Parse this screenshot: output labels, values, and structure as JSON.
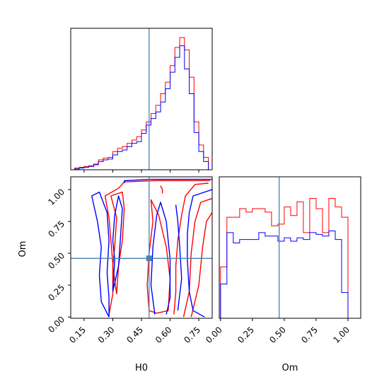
{
  "colors": {
    "series_a": "#ff0000",
    "series_b": "#0000ff",
    "truth": "#4682b4",
    "axes": "#000000",
    "background": "#ffffff"
  },
  "chart_data": [
    {
      "type": "histogram",
      "panel": "H0 marginal (top-left)",
      "xlim": [
        0.08,
        0.82
      ],
      "truth_line_x": 0.49,
      "y_tick_labels": false,
      "bin_edges": [
        0.1,
        0.125,
        0.15,
        0.175,
        0.2,
        0.225,
        0.25,
        0.275,
        0.3,
        0.325,
        0.35,
        0.375,
        0.4,
        0.425,
        0.45,
        0.475,
        0.5,
        0.525,
        0.55,
        0.575,
        0.6,
        0.625,
        0.65,
        0.675,
        0.7,
        0.725,
        0.75,
        0.775,
        0.8
      ],
      "series": [
        {
          "color_key": "series_a",
          "values": [
            2,
            3,
            4,
            5,
            7,
            12,
            14,
            15,
            22,
            26,
            28,
            32,
            36,
            40,
            48,
            58,
            68,
            78,
            92,
            106,
            126,
            148,
            160,
            145,
            112,
            58,
            30,
            15
          ]
        },
        {
          "color_key": "series_b",
          "values": [
            1,
            2,
            3,
            4,
            6,
            10,
            12,
            13,
            18,
            22,
            24,
            28,
            32,
            34,
            44,
            54,
            62,
            70,
            82,
            98,
            118,
            136,
            150,
            122,
            92,
            45,
            22,
            10
          ]
        }
      ]
    },
    {
      "type": "contour",
      "panel": "Om vs H0 joint (bottom-left)",
      "xlabel": "H0",
      "ylabel": "Om",
      "xlim": [
        0.08,
        0.82
      ],
      "ylim": [
        -0.01,
        1.1
      ],
      "x_ticks": [
        "0.15",
        "0.30",
        "0.45",
        "0.60",
        "0.75"
      ],
      "x_tick_values": [
        0.15,
        0.3,
        0.45,
        0.6,
        0.75
      ],
      "y_ticks": [
        "0.00",
        "0.25",
        "0.50",
        "0.75",
        "1.00"
      ],
      "y_tick_values": [
        0.0,
        0.25,
        0.5,
        0.75,
        1.0
      ],
      "truth_point": [
        0.49,
        0.46
      ],
      "series": [
        {
          "color_key": "series_a",
          "contours": [
            [
              [
                0.28,
                0.02
              ],
              [
                0.3,
                0.18
              ],
              [
                0.3,
                0.42
              ],
              [
                0.29,
                0.6
              ],
              [
                0.28,
                0.78
              ],
              [
                0.26,
                0.95
              ],
              [
                0.33,
                1.01
              ],
              [
                0.36,
                1.06
              ],
              [
                0.52,
                1.07
              ],
              [
                0.7,
                1.07
              ],
              [
                0.81,
                1.07
              ]
            ],
            [
              [
                0.8,
                1.05
              ],
              [
                0.73,
                1.04
              ],
              [
                0.68,
                0.95
              ],
              [
                0.66,
                0.8
              ],
              [
                0.64,
                0.6
              ],
              [
                0.63,
                0.4
              ],
              [
                0.63,
                0.2
              ],
              [
                0.62,
                0.02
              ]
            ],
            [
              [
                0.49,
                0.05
              ],
              [
                0.48,
                0.25
              ],
              [
                0.49,
                0.5
              ],
              [
                0.51,
                0.75
              ],
              [
                0.5,
                0.92
              ],
              [
                0.54,
                0.8
              ],
              [
                0.58,
                0.55
              ],
              [
                0.6,
                0.3
              ],
              [
                0.59,
                0.05
              ],
              [
                0.53,
                0.03
              ],
              [
                0.49,
                0.05
              ]
            ],
            [
              [
                0.67,
                0.0
              ],
              [
                0.7,
                0.2
              ],
              [
                0.71,
                0.5
              ],
              [
                0.73,
                0.75
              ],
              [
                0.76,
                0.9
              ],
              [
                0.82,
                0.93
              ]
            ],
            [
              [
                0.71,
                0.0
              ],
              [
                0.75,
                0.25
              ],
              [
                0.77,
                0.55
              ],
              [
                0.79,
                0.75
              ],
              [
                0.82,
                0.82
              ]
            ],
            [
              [
                0.32,
                0.18
              ],
              [
                0.3,
                0.4
              ],
              [
                0.31,
                0.55
              ],
              [
                0.32,
                0.78
              ],
              [
                0.29,
                0.95
              ],
              [
                0.35,
                0.98
              ],
              [
                0.36,
                0.85
              ],
              [
                0.35,
                0.6
              ],
              [
                0.33,
                0.4
              ],
              [
                0.32,
                0.18
              ]
            ],
            [
              [
                0.55,
                1.03
              ],
              [
                0.56,
                1.0
              ],
              [
                0.56,
                0.97
              ]
            ]
          ]
        },
        {
          "color_key": "series_b",
          "contours": [
            [
              [
                0.28,
                0.0
              ],
              [
                0.24,
                0.12
              ],
              [
                0.23,
                0.33
              ],
              [
                0.24,
                0.55
              ],
              [
                0.22,
                0.75
              ],
              [
                0.19,
                0.95
              ],
              [
                0.23,
                0.98
              ],
              [
                0.27,
                0.82
              ],
              [
                0.28,
                0.6
              ],
              [
                0.27,
                0.35
              ],
              [
                0.28,
                0.15
              ],
              [
                0.28,
                0.0
              ]
            ],
            [
              [
                0.36,
                1.05
              ],
              [
                0.36,
                1.07
              ],
              [
                0.5,
                1.08
              ],
              [
                0.65,
                1.08
              ],
              [
                0.82,
                1.08
              ]
            ],
            [
              [
                0.78,
                0.0
              ],
              [
                0.72,
                0.05
              ],
              [
                0.7,
                0.2
              ],
              [
                0.69,
                0.45
              ],
              [
                0.69,
                0.65
              ],
              [
                0.7,
                0.82
              ],
              [
                0.72,
                0.95
              ],
              [
                0.82,
                1.0
              ]
            ],
            [
              [
                0.52,
                0.02
              ],
              [
                0.5,
                0.25
              ],
              [
                0.51,
                0.55
              ],
              [
                0.53,
                0.8
              ],
              [
                0.55,
                0.9
              ],
              [
                0.58,
                0.75
              ],
              [
                0.6,
                0.45
              ],
              [
                0.6,
                0.15
              ],
              [
                0.58,
                0.02
              ]
            ],
            [
              [
                0.64,
                0.05
              ],
              [
                0.66,
                0.3
              ],
              [
                0.65,
                0.55
              ],
              [
                0.64,
                0.75
              ],
              [
                0.63,
                0.88
              ]
            ],
            [
              [
                0.3,
                0.2
              ],
              [
                0.31,
                0.45
              ],
              [
                0.3,
                0.6
              ],
              [
                0.31,
                0.8
              ],
              [
                0.33,
                0.95
              ],
              [
                0.35,
                0.85
              ],
              [
                0.34,
                0.62
              ],
              [
                0.33,
                0.4
              ],
              [
                0.3,
                0.2
              ]
            ]
          ]
        }
      ]
    },
    {
      "type": "histogram",
      "panel": "Om marginal (bottom-right)",
      "xlabel": "Om",
      "xlim": [
        -0.01,
        1.1
      ],
      "truth_line_x": 0.46,
      "x_ticks": [
        "0.00",
        "0.25",
        "0.50",
        "0.75",
        "1.00"
      ],
      "x_tick_values": [
        0.0,
        0.25,
        0.5,
        0.75,
        1.0
      ],
      "y_tick_labels": false,
      "bin_edges": [
        0.0,
        0.05,
        0.1,
        0.15,
        0.2,
        0.25,
        0.3,
        0.35,
        0.4,
        0.45,
        0.5,
        0.55,
        0.6,
        0.65,
        0.7,
        0.75,
        0.8,
        0.85,
        0.9,
        0.95,
        1.0,
        1.05
      ],
      "series": [
        {
          "color_key": "series_a",
          "values": [
            60,
            118,
            118,
            128,
            124,
            128,
            128,
            124,
            108,
            110,
            130,
            120,
            136,
            100,
            140,
            128,
            100,
            140,
            130,
            118,
            0
          ]
        },
        {
          "color_key": "series_b",
          "values": [
            40,
            100,
            88,
            92,
            92,
            92,
            100,
            96,
            96,
            90,
            94,
            90,
            94,
            92,
            100,
            98,
            96,
            102,
            92,
            30,
            0
          ]
        }
      ]
    }
  ]
}
